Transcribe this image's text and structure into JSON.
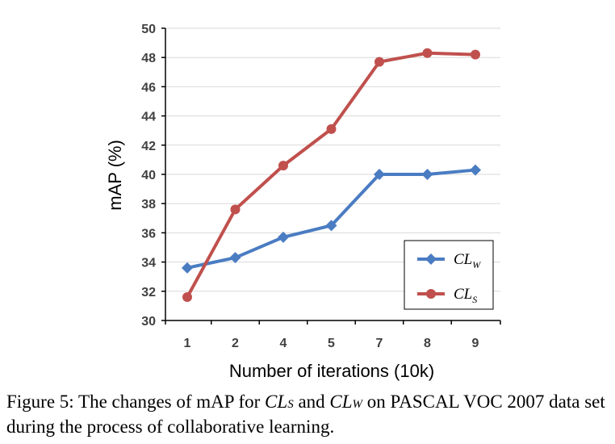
{
  "chart_data": {
    "type": "line",
    "categories": [
      "1",
      "2",
      "4",
      "5",
      "7",
      "8",
      "9"
    ],
    "xlabel": "Number of iterations (10k)",
    "ylabel": "mAP (%)",
    "ylim": [
      30,
      50
    ],
    "yticks": [
      "30",
      "32",
      "34",
      "36",
      "38",
      "40",
      "42",
      "44",
      "46",
      "48",
      "50"
    ],
    "grid": "horizontal",
    "legend_position": "bottom-right",
    "series": [
      {
        "name": "CL",
        "subscript": "W",
        "color": "#4a7cc2",
        "marker": "diamond",
        "values": [
          33.6,
          34.3,
          35.7,
          36.5,
          40.0,
          40.0,
          40.3
        ]
      },
      {
        "name": "CL",
        "subscript": "S",
        "color": "#c0504d",
        "marker": "circle",
        "values": [
          31.6,
          37.6,
          40.6,
          43.1,
          47.7,
          48.3,
          48.2
        ]
      }
    ]
  },
  "caption": {
    "label": "Figure 5:",
    "text1": "The changes of mAP for",
    "m1": "CL",
    "m1_sub": "S",
    "and": "and",
    "m2": "CL",
    "m2_sub": "W",
    "text2": "on PASCAL VOC 2007 data set during the process of collaborative learning."
  }
}
